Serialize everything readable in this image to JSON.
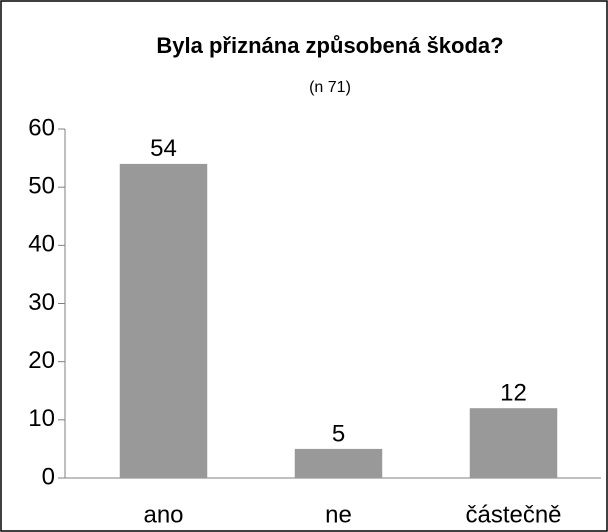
{
  "chart_data": {
    "type": "bar",
    "title": "Byla přiznána způsobená škoda?",
    "subtitle": "(n 71)",
    "categories": [
      "ano",
      "ne",
      "částečně"
    ],
    "values": [
      54,
      5,
      12
    ],
    "color": "#999999",
    "ylim": [
      0,
      60
    ],
    "yticks": [
      0,
      10,
      20,
      30,
      40,
      50,
      60
    ],
    "grid": false
  }
}
